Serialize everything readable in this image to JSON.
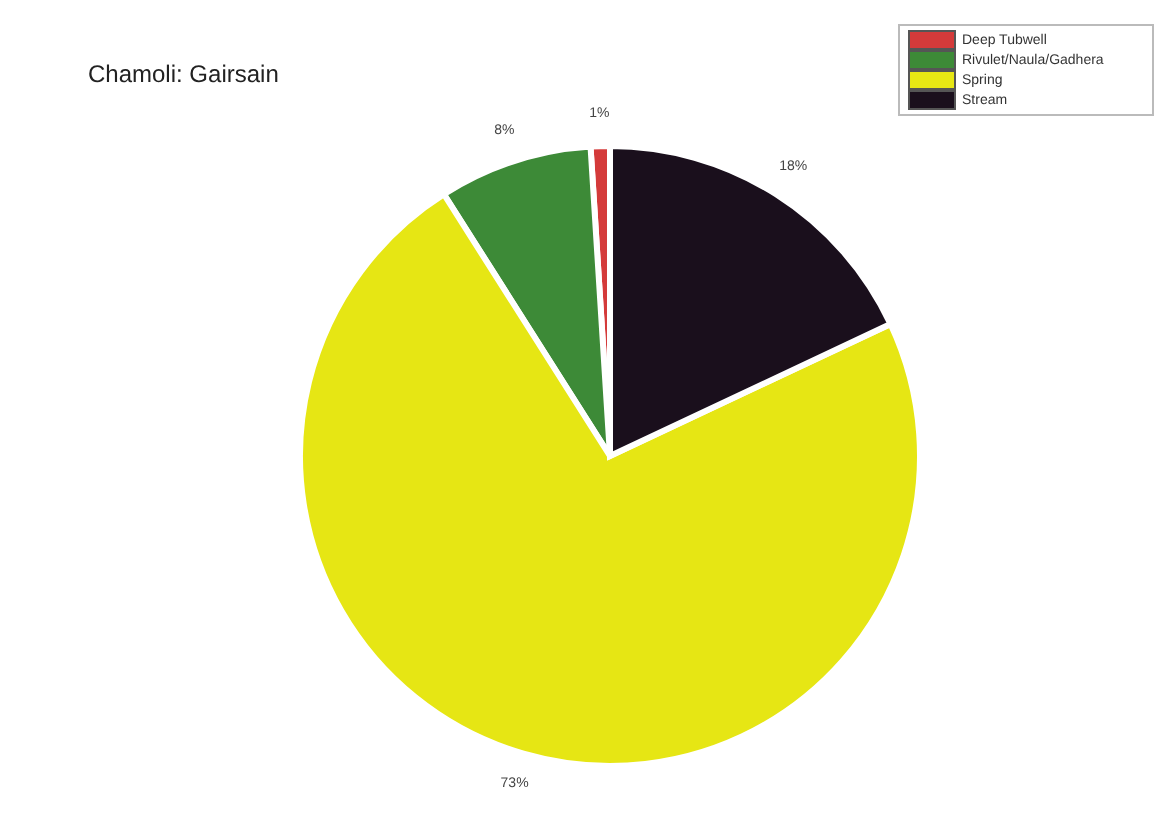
{
  "chart_data": {
    "type": "pie",
    "title": "Chamoli: Gairsain",
    "categories": [
      "Deep Tubwell",
      "Rivulet/Naula/Gadhera",
      "Spring",
      "Stream"
    ],
    "values": [
      1,
      8,
      73,
      18
    ],
    "value_labels": [
      "1%",
      "8%",
      "73%",
      "18%"
    ],
    "colors": [
      "#d43a3a",
      "#3d8a37",
      "#e6e614",
      "#1a0f1c"
    ],
    "legend": "top right"
  }
}
